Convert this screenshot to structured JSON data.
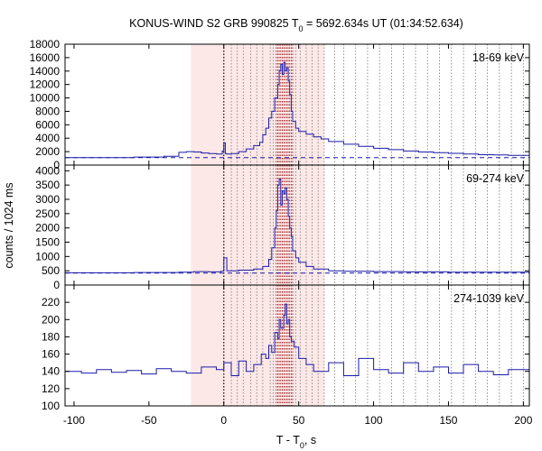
{
  "chart_data": {
    "type": "line",
    "title": {
      "prefix": "KONUS-WIND S2 GRB 990825 T",
      "sub": "0",
      "suffix": " = 5692.634s UT (01:34:52.634)"
    },
    "xlabel": {
      "prefix": "T - T",
      "sub": "0",
      "suffix": ", s"
    },
    "ylabel": "counts / 1024 ms",
    "xlim": [
      -106,
      204
    ],
    "xticks": [
      -100,
      -50,
      0,
      50,
      100,
      150,
      200
    ],
    "shaded_region": [
      -22,
      67
    ],
    "dotted_lines_x": [
      0,
      5,
      9,
      13,
      18,
      22,
      26,
      31,
      33,
      35,
      36,
      37,
      38,
      39,
      40,
      41,
      42,
      43,
      44,
      45,
      46,
      48,
      51,
      55,
      59,
      63,
      67,
      74,
      80,
      88,
      96,
      104,
      112,
      120,
      128,
      136,
      144,
      152,
      160,
      168,
      176,
      184,
      192,
      200
    ],
    "colors": {
      "series": "#1a1aa8",
      "shading": "#fde8e8",
      "dotted": "#777777",
      "dotted_emph": "#8b0000"
    },
    "panels": [
      {
        "band": "18-69 keV",
        "ylim": [
          0,
          18000
        ],
        "yticks": [
          0,
          2000,
          4000,
          6000,
          8000,
          10000,
          12000,
          14000,
          16000,
          18000
        ],
        "background": 1100,
        "series": {
          "x": [
            -106,
            -60,
            -40,
            -30,
            -25,
            -20,
            -15,
            -10,
            -5,
            -1,
            0,
            1,
            2,
            5,
            10,
            15,
            20,
            24,
            26,
            28,
            30,
            32,
            34,
            36,
            37,
            38,
            39,
            40,
            41,
            42,
            43,
            44,
            45,
            46,
            48,
            50,
            55,
            60,
            65,
            70,
            80,
            90,
            100,
            110,
            120,
            130,
            140,
            150,
            160,
            170,
            180,
            190,
            204
          ],
          "y": [
            1100,
            1200,
            1300,
            1900,
            2000,
            1950,
            1800,
            1700,
            1650,
            2100,
            3300,
            1700,
            1650,
            1700,
            2000,
            2400,
            2900,
            3400,
            4500,
            5500,
            7000,
            8000,
            10000,
            12000,
            14000,
            15000,
            13500,
            15300,
            14000,
            14500,
            12500,
            10500,
            8000,
            6500,
            5500,
            5000,
            4600,
            4200,
            3900,
            3500,
            3100,
            2800,
            2500,
            2300,
            2100,
            1950,
            1850,
            1750,
            1650,
            1550,
            1500,
            1450,
            1400
          ]
        }
      },
      {
        "band": "69-274 keV",
        "ylim": [
          0,
          4200
        ],
        "yticks": [
          0,
          500,
          1000,
          1500,
          2000,
          2500,
          3000,
          3500,
          4000
        ],
        "background": 420,
        "series": {
          "x": [
            -106,
            -60,
            -30,
            -20,
            -10,
            -2,
            0,
            2,
            10,
            20,
            26,
            30,
            32,
            34,
            35,
            36,
            37,
            38,
            39,
            40,
            41,
            42,
            43,
            44,
            45,
            46,
            48,
            50,
            55,
            60,
            70,
            80,
            100,
            120,
            150,
            204
          ],
          "y": [
            430,
            440,
            450,
            470,
            460,
            480,
            950,
            500,
            520,
            560,
            650,
            900,
            1300,
            2000,
            2600,
            3500,
            3700,
            2800,
            3300,
            3200,
            3400,
            3000,
            2400,
            2000,
            1700,
            1200,
            950,
            800,
            650,
            560,
            500,
            480,
            470,
            460,
            450,
            440
          ]
        }
      },
      {
        "band": "274-1039 keV",
        "ylim": [
          100,
          240
        ],
        "yticks": [
          100,
          120,
          140,
          160,
          180,
          200,
          220
        ],
        "background": null,
        "series": {
          "x": [
            -106,
            -95,
            -85,
            -75,
            -65,
            -55,
            -45,
            -35,
            -25,
            -15,
            -5,
            0,
            5,
            10,
            15,
            20,
            25,
            28,
            30,
            32,
            34,
            36,
            37,
            38,
            40,
            41,
            42,
            43,
            44,
            45,
            47,
            50,
            55,
            60,
            70,
            80,
            90,
            100,
            110,
            120,
            130,
            140,
            150,
            160,
            170,
            180,
            190,
            204
          ],
          "y": [
            140,
            138,
            142,
            139,
            141,
            137,
            143,
            140,
            138,
            145,
            142,
            150,
            135,
            152,
            140,
            148,
            160,
            155,
            170,
            162,
            185,
            178,
            200,
            190,
            205,
            218,
            195,
            200,
            180,
            175,
            168,
            155,
            148,
            140,
            150,
            135,
            155,
            142,
            138,
            150,
            140,
            145,
            138,
            148,
            140,
            136,
            142,
            138
          ]
        }
      }
    ]
  }
}
